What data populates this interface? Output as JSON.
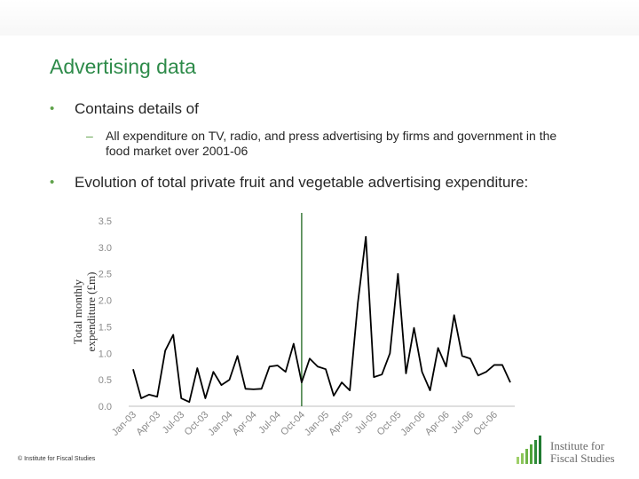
{
  "slide": {
    "title": "Advertising data",
    "bullet1": "Contains details of",
    "sub1": "All expenditure on TV, radio, and press advertising by firms and government in the food market over 2001-06",
    "bullet2": "Evolution of total private fruit and vegetable advertising expenditure:",
    "footer": "© Institute for Fiscal Studies",
    "logo_line1": "Institute for",
    "logo_line2": "Fiscal Studies"
  },
  "colors": {
    "title": "#2e8b4a",
    "bullet": "#5fa24a",
    "line": "#000000",
    "marker_line": "#3d7a3d"
  },
  "chart_data": {
    "type": "line",
    "ylabel": "Total monthly expenditure (£m)",
    "xlabel": "",
    "ylim": [
      0,
      3.5
    ],
    "yticks": [
      "0.0",
      "0.5",
      "1.0",
      "1.5",
      "2.0",
      "2.5",
      "3.0",
      "3.5"
    ],
    "xticks": [
      "Jan-03",
      "Apr-03",
      "Jul-03",
      "Oct-03",
      "Jan-04",
      "Apr-04",
      "Jul-04",
      "Oct-04",
      "Jan-05",
      "Apr-05",
      "Jul-05",
      "Oct-05",
      "Jan-06",
      "Apr-06",
      "Jul-06",
      "Oct-06"
    ],
    "vertical_marker_at": "Oct-04",
    "series": [
      {
        "x": [
          "Jan-03",
          "Feb-03",
          "Mar-03",
          "Apr-03",
          "May-03",
          "Jun-03",
          "Jul-03",
          "Aug-03",
          "Sep-03",
          "Oct-03",
          "Nov-03",
          "Dec-03",
          "Jan-04",
          "Feb-04",
          "Mar-04",
          "Apr-04",
          "May-04",
          "Jun-04",
          "Jul-04",
          "Aug-04",
          "Sep-04",
          "Oct-04",
          "Nov-04",
          "Dec-04",
          "Jan-05",
          "Feb-05",
          "Mar-05",
          "Apr-05",
          "May-05",
          "Jun-05",
          "Jul-05",
          "Aug-05",
          "Sep-05",
          "Oct-05",
          "Nov-05",
          "Dec-05",
          "Jan-06",
          "Feb-06",
          "Mar-06",
          "Apr-06",
          "May-06",
          "Jun-06",
          "Jul-06",
          "Aug-06",
          "Sep-06",
          "Oct-06",
          "Nov-06",
          "Dec-06"
        ],
        "values": [
          0.7,
          0.15,
          0.22,
          0.18,
          1.05,
          1.35,
          0.15,
          0.08,
          0.72,
          0.15,
          0.65,
          0.4,
          0.5,
          0.95,
          0.33,
          0.32,
          0.33,
          0.75,
          0.77,
          0.65,
          1.18,
          0.45,
          0.9,
          0.75,
          0.7,
          0.2,
          0.45,
          0.3,
          1.95,
          3.2,
          0.55,
          0.6,
          1.0,
          2.5,
          0.62,
          1.48,
          0.65,
          0.3,
          1.1,
          0.75,
          1.72,
          0.95,
          0.9,
          0.58,
          0.65,
          0.78,
          0.78,
          0.45
        ]
      }
    ]
  }
}
